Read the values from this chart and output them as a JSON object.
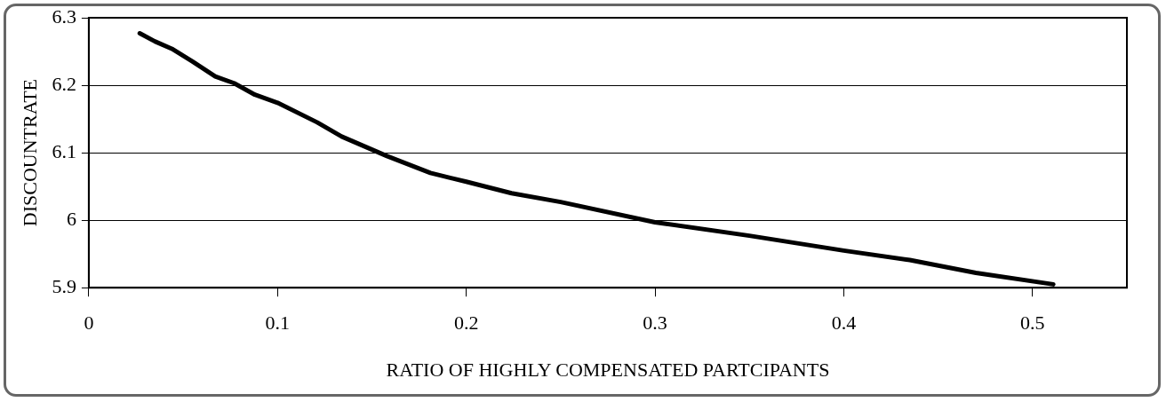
{
  "chart_data": {
    "type": "line",
    "xlabel": "RATIO OF HIGHLY COMPENSATED PARTCIPANTS",
    "ylabel": "DISCOUNTRATE",
    "x": [
      0.027,
      0.035,
      0.044,
      0.055,
      0.067,
      0.077,
      0.088,
      0.1,
      0.121,
      0.134,
      0.158,
      0.181,
      0.2,
      0.224,
      0.25,
      0.3,
      0.35,
      0.4,
      0.435,
      0.47,
      0.511
    ],
    "series": [
      {
        "color": "#000000",
        "values": [
          6.277,
          6.265,
          6.254,
          6.235,
          6.213,
          6.203,
          6.186,
          6.174,
          6.145,
          6.124,
          6.095,
          6.07,
          6.057,
          6.04,
          6.027,
          5.997,
          5.977,
          5.955,
          5.941,
          5.922,
          5.905
        ]
      }
    ],
    "xlim": [
      0,
      0.55
    ],
    "xticks": [
      0,
      0.1,
      0.2,
      0.3,
      0.4,
      0.5
    ],
    "ylim": [
      5.9,
      6.3
    ],
    "yticks": [
      5.9,
      6,
      6.1,
      6.2,
      6.3
    ],
    "grid": "y",
    "legend": false,
    "marker": "none",
    "line_style": "solid"
  }
}
